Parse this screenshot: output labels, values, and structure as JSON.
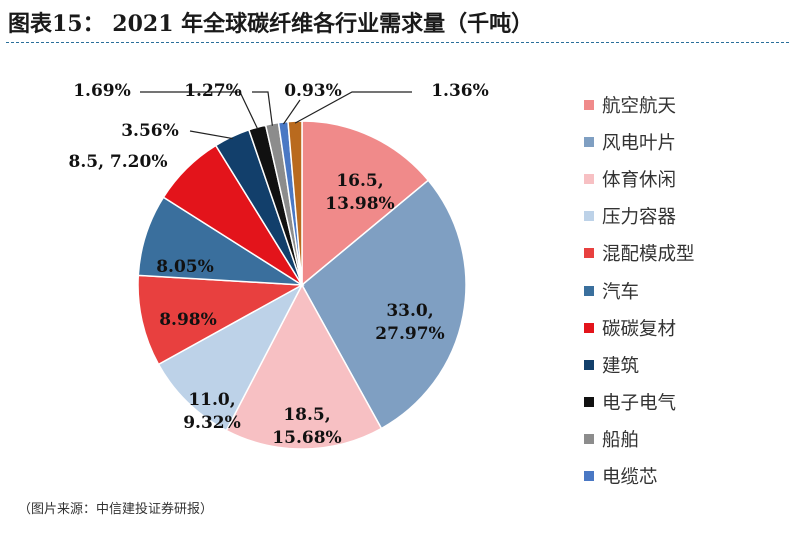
{
  "page": {
    "title": "图表15： 2021 年全球碳纤维各行业需求量（千吨）",
    "source": "（图片来源：中信建投证券研报）"
  },
  "chart_data": {
    "type": "pie",
    "title": "图表15： 2021 年全球碳纤维各行业需求量（千吨）",
    "legend_position": "right",
    "slices": [
      {
        "name": "航空航天",
        "value_label": "16.5,",
        "percent_label": "13.98%",
        "value": 16.5,
        "percent": 13.98,
        "color": "#f08a8a"
      },
      {
        "name": "风电叶片",
        "value_label": "33.0,",
        "percent_label": "27.97%",
        "value": 33.0,
        "percent": 27.97,
        "color": "#7f9fc2"
      },
      {
        "name": "体育休闲",
        "value_label": "18.5,",
        "percent_label": "15.68%",
        "value": 18.5,
        "percent": 15.68,
        "color": "#f7c0c3"
      },
      {
        "name": "压力容器",
        "value_label": "11.0,",
        "percent_label": "9.32%",
        "value": 11.0,
        "percent": 9.32,
        "color": "#bdd2e8"
      },
      {
        "name": "混配模成型",
        "value_label": "",
        "percent_label": "8.98%",
        "value": null,
        "percent": 8.98,
        "color": "#e8403f"
      },
      {
        "name": "汽车",
        "value_label": "",
        "percent_label": "8.05%",
        "value": null,
        "percent": 8.05,
        "color": "#3a6f9d"
      },
      {
        "name": "碳碳复材",
        "value_label": "8.5,",
        "percent_label": "7.20%",
        "value": 8.5,
        "percent": 7.2,
        "color": "#e3141b"
      },
      {
        "name": "建筑",
        "value_label": "",
        "percent_label": "3.56%",
        "value": null,
        "percent": 3.56,
        "color": "#123f6b"
      },
      {
        "name": "电子电气",
        "value_label": "",
        "percent_label": "1.69%",
        "value": null,
        "percent": 1.69,
        "color": "#111111"
      },
      {
        "name": "船舶",
        "value_label": "",
        "percent_label": "1.27%",
        "value": null,
        "percent": 1.27,
        "color": "#8c8c8c"
      },
      {
        "name": "电缆芯",
        "value_label": "",
        "percent_label": "0.93%",
        "value": null,
        "percent": 0.93,
        "color": "#4a78c4"
      },
      {
        "name": "",
        "value_label": "",
        "percent_label": "1.36%",
        "value": null,
        "percent": 1.36,
        "color": "#b96a1e"
      }
    ]
  }
}
